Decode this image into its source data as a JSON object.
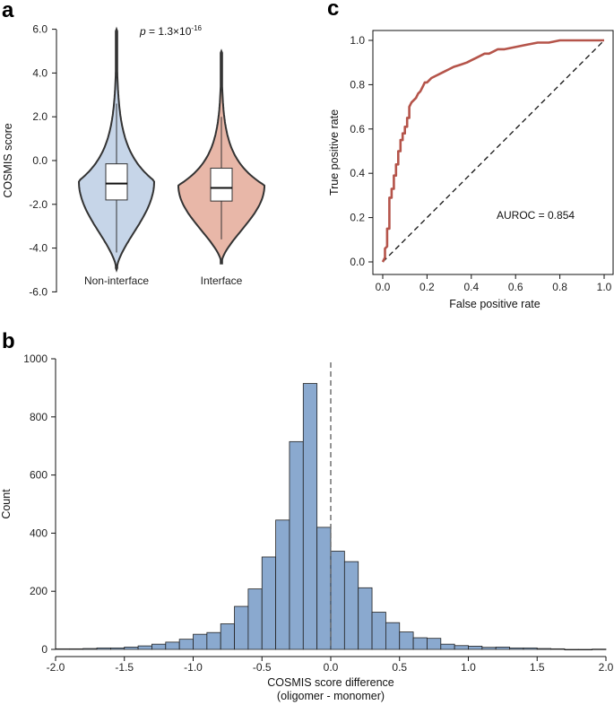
{
  "chart_data": [
    {
      "panel": "a",
      "type": "violin",
      "ylabel": "COSMIS score",
      "ylim": [
        -6.0,
        6.0
      ],
      "yticks": [
        "6.0",
        "4.0",
        "2.0",
        "0.0",
        "-2.0",
        "-4.0",
        "-6.0"
      ],
      "categories": [
        "Non-interface",
        "Interface"
      ],
      "colors": [
        "#c6d5e8",
        "#e8b7a8"
      ],
      "groups": [
        {
          "category": "Non-interface",
          "min": -5.0,
          "max": 6.0,
          "q1": -1.8,
          "median": -1.05,
          "q3": -0.15,
          "whisker_low": -4.2,
          "whisker_high": 2.6
        },
        {
          "category": "Interface",
          "min": -4.7,
          "max": 5.0,
          "q1": -1.85,
          "median": -1.25,
          "q3": -0.35,
          "whisker_low": -3.6,
          "whisker_high": 2.0
        }
      ],
      "annotation": {
        "prefix": "p",
        "text": " = 1.3×10",
        "exponent": "-16"
      }
    },
    {
      "panel": "c",
      "type": "line",
      "xlabel": "False positive rate",
      "ylabel": "True positive rate",
      "xlim": [
        0,
        1.0
      ],
      "ylim": [
        0,
        1.0
      ],
      "xticks": [
        "0.0",
        "0.2",
        "0.4",
        "0.6",
        "0.8",
        "1.0"
      ],
      "yticks": [
        "0.0",
        "0.2",
        "0.4",
        "0.6",
        "0.8",
        "1.0"
      ],
      "series": [
        {
          "color": "#b5544a",
          "x": [
            0,
            0.01,
            0.01,
            0.02,
            0.02,
            0.03,
            0.03,
            0.04,
            0.04,
            0.05,
            0.05,
            0.06,
            0.06,
            0.07,
            0.07,
            0.08,
            0.08,
            0.09,
            0.09,
            0.1,
            0.1,
            0.11,
            0.11,
            0.12,
            0.12,
            0.13,
            0.14,
            0.15,
            0.16,
            0.17,
            0.18,
            0.19,
            0.2,
            0.22,
            0.24,
            0.26,
            0.28,
            0.3,
            0.32,
            0.35,
            0.38,
            0.4,
            0.42,
            0.44,
            0.46,
            0.48,
            0.5,
            0.52,
            0.55,
            0.6,
            0.65,
            0.7,
            0.75,
            0.8,
            0.85,
            0.9,
            0.95,
            1.0
          ],
          "y": [
            0,
            0.02,
            0.06,
            0.07,
            0.15,
            0.15,
            0.29,
            0.29,
            0.33,
            0.33,
            0.39,
            0.39,
            0.44,
            0.44,
            0.5,
            0.5,
            0.55,
            0.55,
            0.58,
            0.58,
            0.61,
            0.61,
            0.65,
            0.65,
            0.7,
            0.72,
            0.73,
            0.74,
            0.76,
            0.77,
            0.79,
            0.81,
            0.81,
            0.83,
            0.84,
            0.85,
            0.86,
            0.87,
            0.88,
            0.89,
            0.9,
            0.91,
            0.92,
            0.93,
            0.94,
            0.94,
            0.95,
            0.96,
            0.96,
            0.97,
            0.98,
            0.99,
            0.99,
            1.0,
            1.0,
            1.0,
            1.0,
            1.0
          ]
        }
      ],
      "reference_line": {
        "style": "dashed",
        "from": [
          0,
          0
        ],
        "to": [
          1.0,
          1.0
        ]
      },
      "annotation": "AUROC = 0.854"
    },
    {
      "panel": "b",
      "type": "histogram",
      "xlabel": "COSMIS score difference",
      "xlabel2": "(oligomer - monomer)",
      "ylabel": "Count",
      "xlim": [
        -2.0,
        2.0
      ],
      "ylim": [
        0,
        1000
      ],
      "xticks": [
        "-2.0",
        "-1.5",
        "-1.0",
        "-0.5",
        "0.0",
        "0.5",
        "1.0",
        "1.5",
        "2.0"
      ],
      "yticks": [
        "0",
        "200",
        "400",
        "600",
        "800",
        "1000"
      ],
      "bar_color": "#8aa9cf",
      "ref_x": 0.0,
      "bin_width": 0.1,
      "bins_left": [
        -2.0,
        -1.9,
        -1.8,
        -1.7,
        -1.6,
        -1.5,
        -1.4,
        -1.3,
        -1.2,
        -1.1,
        -1.0,
        -0.9,
        -0.8,
        -0.7,
        -0.6,
        -0.5,
        -0.4,
        -0.3,
        -0.2,
        -0.1,
        0.0,
        0.1,
        0.2,
        0.3,
        0.4,
        0.5,
        0.6,
        0.7,
        0.8,
        0.9,
        1.0,
        1.1,
        1.2,
        1.3,
        1.4,
        1.5,
        1.6,
        1.7,
        1.8,
        1.9
      ],
      "counts": [
        2,
        2,
        3,
        5,
        5,
        8,
        12,
        18,
        25,
        35,
        52,
        58,
        88,
        148,
        208,
        318,
        445,
        715,
        915,
        420,
        338,
        302,
        212,
        128,
        92,
        60,
        40,
        38,
        18,
        13,
        11,
        7,
        8,
        5,
        5,
        3,
        2,
        0,
        0,
        1
      ]
    }
  ]
}
